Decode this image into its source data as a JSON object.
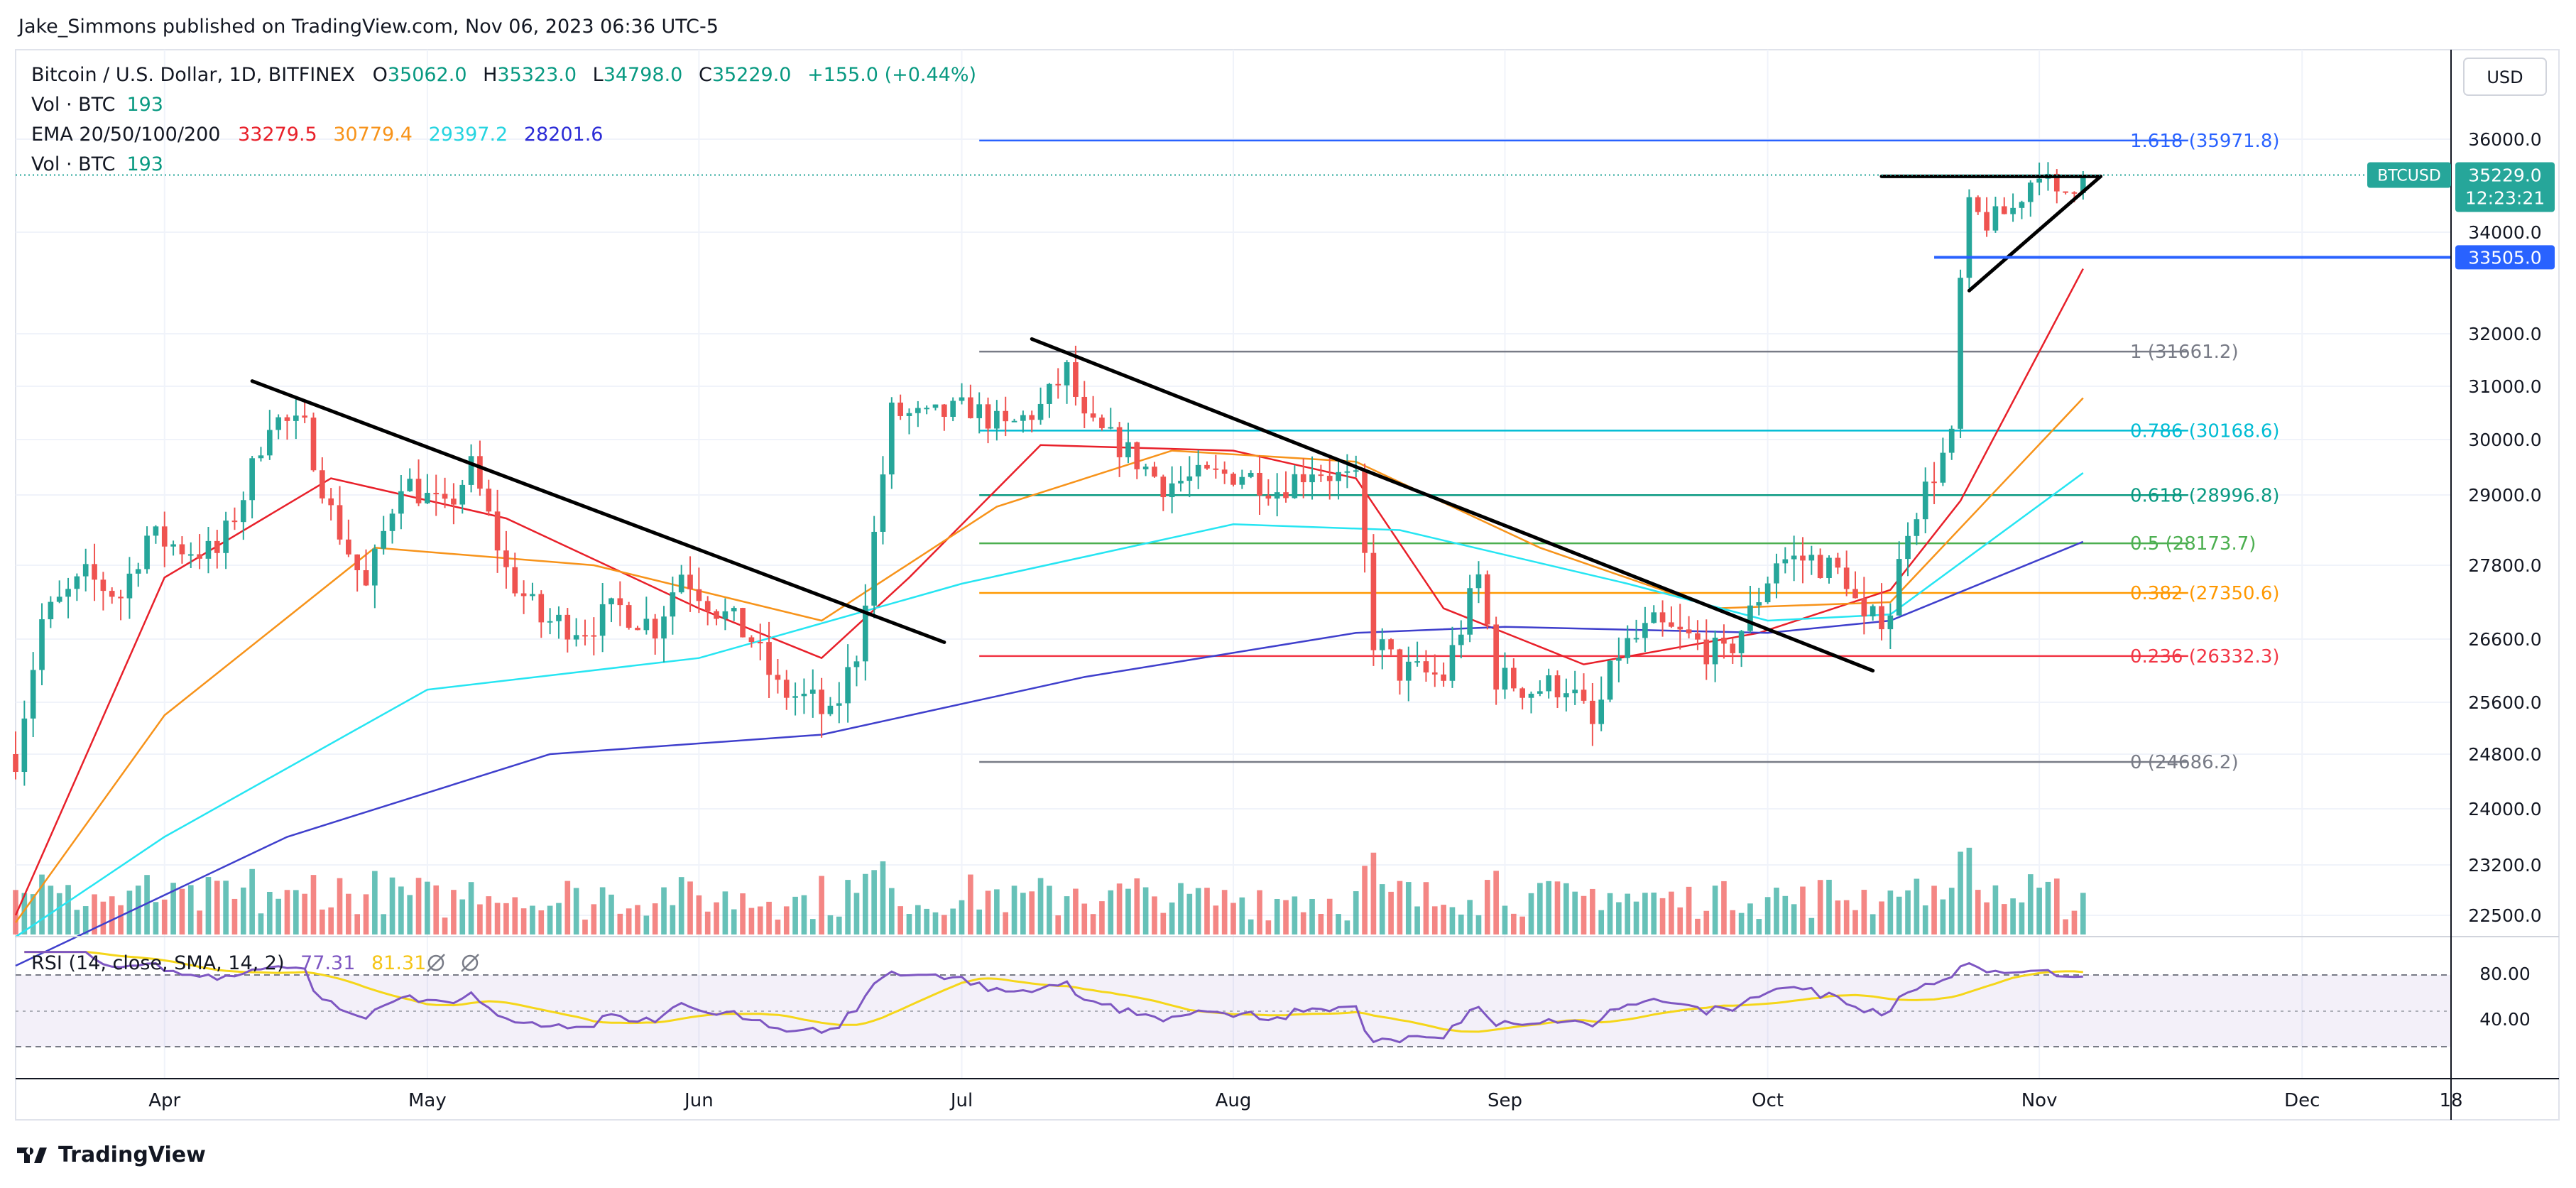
{
  "header": {
    "publisher_line": "Jake_Simmons published on TradingView.com, Nov 06, 2023 06:36 UTC-5"
  },
  "legend": {
    "symbol": "Bitcoin / U.S. Dollar, 1D, BITFINEX",
    "ohlc": [
      {
        "k": "O",
        "v": "35062.0"
      },
      {
        "k": "H",
        "v": "35323.0"
      },
      {
        "k": "L",
        "v": "34798.0"
      },
      {
        "k": "C",
        "v": "35229.0"
      }
    ],
    "change": "+155.0 (+0.44%)",
    "vol_label": "Vol · BTC",
    "vol_value": "193",
    "ema_label": "EMA 20/50/100/200",
    "ema_values": [
      "33279.5",
      "30779.4",
      "29397.2",
      "28201.6"
    ],
    "vol2_label": "Vol · BTC",
    "vol2_value": "193"
  },
  "rsi": {
    "label": "RSI (14, close, SMA, 14, 2)",
    "value": "77.31",
    "sma_value": "81.31",
    "icons": [
      "hidden-icon",
      "hidden-icon"
    ],
    "ticks": [
      "80.00",
      "40.00"
    ]
  },
  "footer": {
    "brand": "TradingView"
  },
  "price_axis": {
    "currency": "USD",
    "ticks": [
      "36000.0",
      "34000.0",
      "32000.0",
      "31000.0",
      "30000.0",
      "29000.0",
      "27800.0",
      "26600.0",
      "25600.0",
      "24800.0",
      "24000.0",
      "23200.0",
      "22500.0"
    ],
    "last_price_label": "BTCUSD",
    "last_price": "35229.0",
    "countdown": "12:23:21",
    "level_label": "33505.0"
  },
  "time_axis": {
    "labels": [
      "Apr",
      "May",
      "Jun",
      "Jul",
      "Aug",
      "Sep",
      "Oct",
      "Nov",
      "Dec",
      "18"
    ]
  },
  "colors": {
    "up": "#26a69a",
    "down": "#ef5350",
    "ema20": "#e8202a",
    "ema50": "#f7931a",
    "ema100": "#26e5f2",
    "ema200": "#3f3fcc",
    "rsi": "#7e57c2",
    "rsi_sma": "#f5d61a"
  },
  "chart_data": {
    "type": "candlestick",
    "symbol": "BTCUSD",
    "timeframe": "1D",
    "x_range": [
      "2023-03-15",
      "2023-12-18"
    ],
    "y_range": [
      22200,
      36700
    ],
    "last_close": 35229.0,
    "horizontal_level": 33505.0,
    "fibonacci": [
      {
        "ratio": "1.618",
        "price": 35971.8,
        "label": "1.618 (35971.8)",
        "color": "#2962ff"
      },
      {
        "ratio": "1",
        "price": 31661.2,
        "label": "1 (31661.2)",
        "color": "#787b86"
      },
      {
        "ratio": "0.786",
        "price": 30168.6,
        "label": "0.786 (30168.6)",
        "color": "#00bcd4"
      },
      {
        "ratio": "0.618",
        "price": 28996.8,
        "label": "0.618 (28996.8)",
        "color": "#089981"
      },
      {
        "ratio": "0.5",
        "price": 28173.7,
        "label": "0.5 (28173.7)",
        "color": "#4caf50"
      },
      {
        "ratio": "0.382",
        "price": 27350.6,
        "label": "0.382 (27350.6)",
        "color": "#ff9800"
      },
      {
        "ratio": "0.236",
        "price": 26332.3,
        "label": "0.236 (26332.3)",
        "color": "#f23645"
      },
      {
        "ratio": "0",
        "price": 24686.2,
        "label": "0 (24686.2)",
        "color": "#787b86"
      }
    ],
    "trendlines": [
      {
        "from": [
          "2023-04-11",
          31100
        ],
        "to": [
          "2023-06-29",
          26550
        ]
      },
      {
        "from": [
          "2023-07-09",
          31900
        ],
        "to": [
          "2023-10-13",
          26100
        ]
      },
      {
        "from": [
          "2023-10-14",
          35200
        ],
        "to": [
          "2023-11-08",
          35200
        ]
      },
      {
        "from": [
          "2023-10-24",
          32850
        ],
        "to": [
          "2023-11-08",
          35200
        ]
      }
    ],
    "price_path": [
      [
        "2023-03-15",
        24800
      ],
      [
        "2023-03-18",
        26900
      ],
      [
        "2023-03-23",
        27600
      ],
      [
        "2023-03-27",
        27300
      ],
      [
        "2023-03-30",
        28300
      ],
      [
        "2023-04-03",
        28100
      ],
      [
        "2023-04-07",
        28000
      ],
      [
        "2023-04-10",
        29000
      ],
      [
        "2023-04-13",
        30400
      ],
      [
        "2023-04-17",
        30200
      ],
      [
        "2023-04-20",
        28700
      ],
      [
        "2023-04-24",
        27400
      ],
      [
        "2023-04-28",
        29300
      ],
      [
        "2023-05-03",
        28700
      ],
      [
        "2023-05-06",
        29500
      ],
      [
        "2023-05-10",
        27700
      ],
      [
        "2023-05-14",
        26900
      ],
      [
        "2023-05-19",
        26800
      ],
      [
        "2023-05-23",
        27100
      ],
      [
        "2023-05-27",
        26800
      ],
      [
        "2023-05-30",
        27700
      ],
      [
        "2023-06-03",
        27100
      ],
      [
        "2023-06-07",
        26600
      ],
      [
        "2023-06-10",
        25800
      ],
      [
        "2023-06-14",
        25600
      ],
      [
        "2023-06-16",
        25300
      ],
      [
        "2023-06-19",
        26400
      ],
      [
        "2023-06-21",
        28300
      ],
      [
        "2023-06-23",
        30500
      ],
      [
        "2023-06-27",
        30400
      ],
      [
        "2023-07-02",
        30600
      ],
      [
        "2023-07-06",
        30200
      ],
      [
        "2023-07-10",
        30600
      ],
      [
        "2023-07-13",
        31300
      ],
      [
        "2023-07-15",
        30300
      ],
      [
        "2023-07-19",
        29900
      ],
      [
        "2023-07-24",
        29200
      ],
      [
        "2023-07-28",
        29300
      ],
      [
        "2023-08-02",
        29400
      ],
      [
        "2023-08-06",
        29100
      ],
      [
        "2023-08-10",
        29500
      ],
      [
        "2023-08-15",
        29200
      ],
      [
        "2023-08-17",
        26600
      ],
      [
        "2023-08-20",
        26100
      ],
      [
        "2023-08-25",
        26000
      ],
      [
        "2023-08-29",
        27600
      ],
      [
        "2023-08-31",
        26000
      ],
      [
        "2023-09-04",
        25800
      ],
      [
        "2023-09-08",
        25900
      ],
      [
        "2023-09-11",
        25200
      ],
      [
        "2023-09-14",
        26400
      ],
      [
        "2023-09-18",
        26800
      ],
      [
        "2023-09-22",
        26600
      ],
      [
        "2023-09-26",
        26300
      ],
      [
        "2023-09-29",
        27000
      ],
      [
        "2023-10-02",
        27900
      ],
      [
        "2023-10-06",
        27900
      ],
      [
        "2023-10-10",
        27600
      ],
      [
        "2023-10-12",
        26800
      ],
      [
        "2023-10-15",
        27100
      ],
      [
        "2023-10-17",
        28500
      ],
      [
        "2023-10-20",
        29400
      ],
      [
        "2023-10-22",
        30000
      ],
      [
        "2023-10-23",
        33000
      ],
      [
        "2023-10-24",
        34500
      ],
      [
        "2023-10-26",
        34200
      ],
      [
        "2023-10-29",
        34500
      ],
      [
        "2023-11-01",
        35400
      ],
      [
        "2023-11-03",
        34700
      ],
      [
        "2023-11-06",
        35229
      ]
    ],
    "ema": [
      {
        "name": "EMA 20",
        "points": [
          [
            "2023-03-15",
            22500
          ],
          [
            "2023-04-01",
            27600
          ],
          [
            "2023-04-20",
            29300
          ],
          [
            "2023-05-10",
            28600
          ],
          [
            "2023-06-01",
            27100
          ],
          [
            "2023-06-15",
            26300
          ],
          [
            "2023-06-25",
            27600
          ],
          [
            "2023-07-10",
            29900
          ],
          [
            "2023-08-01",
            29800
          ],
          [
            "2023-08-15",
            29300
          ],
          [
            "2023-08-25",
            27100
          ],
          [
            "2023-09-10",
            26200
          ],
          [
            "2023-09-30",
            26700
          ],
          [
            "2023-10-15",
            27400
          ],
          [
            "2023-10-23",
            28900
          ],
          [
            "2023-11-06",
            33279.5
          ]
        ]
      },
      {
        "name": "EMA 50",
        "points": [
          [
            "2023-03-15",
            22400
          ],
          [
            "2023-04-01",
            25400
          ],
          [
            "2023-04-25",
            28100
          ],
          [
            "2023-05-20",
            27800
          ],
          [
            "2023-06-15",
            26900
          ],
          [
            "2023-07-05",
            28800
          ],
          [
            "2023-07-25",
            29800
          ],
          [
            "2023-08-15",
            29600
          ],
          [
            "2023-09-05",
            28100
          ],
          [
            "2023-09-25",
            27100
          ],
          [
            "2023-10-15",
            27200
          ],
          [
            "2023-11-06",
            30779.4
          ]
        ]
      },
      {
        "name": "EMA 100",
        "points": [
          [
            "2023-03-15",
            22200
          ],
          [
            "2023-04-01",
            23600
          ],
          [
            "2023-05-01",
            25800
          ],
          [
            "2023-06-01",
            26300
          ],
          [
            "2023-07-01",
            27500
          ],
          [
            "2023-08-01",
            28500
          ],
          [
            "2023-08-20",
            28400
          ],
          [
            "2023-09-15",
            27500
          ],
          [
            "2023-10-01",
            26900
          ],
          [
            "2023-10-15",
            27000
          ],
          [
            "2023-11-06",
            29397.2
          ]
        ]
      },
      {
        "name": "EMA 200",
        "points": [
          [
            "2023-03-15",
            21800
          ],
          [
            "2023-04-15",
            23600
          ],
          [
            "2023-05-15",
            24800
          ],
          [
            "2023-06-15",
            25100
          ],
          [
            "2023-07-15",
            26000
          ],
          [
            "2023-08-15",
            26700
          ],
          [
            "2023-09-01",
            26800
          ],
          [
            "2023-10-01",
            26700
          ],
          [
            "2023-10-15",
            26900
          ],
          [
            "2023-11-06",
            28201.6
          ]
        ]
      }
    ],
    "rsi": {
      "ylim": [
        0,
        100
      ],
      "upper_band": 70,
      "lower_band": 30,
      "last": 77.31,
      "sma_last": 81.31
    }
  }
}
